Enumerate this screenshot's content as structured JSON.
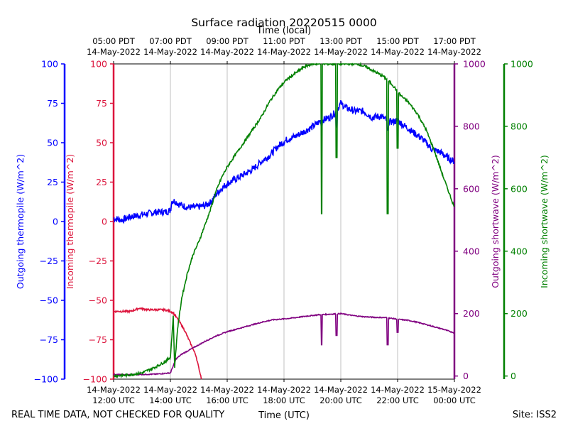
{
  "chart_data": {
    "type": "line",
    "title": "Surface radiation 20220515 0000",
    "top_xlabel": "Time (local)",
    "xlabel": "Time (UTC)",
    "footer_left": "REAL TIME DATA, NOT CHECKED FOR QUALITY",
    "footer_right": "Site: ISS2",
    "xlim_hours_utc": [
      12,
      24
    ],
    "grid": "vertical",
    "x_ticks": [
      {
        "hour": 12,
        "date": "14-May-2022",
        "utc": "12:00 UTC",
        "local_time": "05:00 PDT",
        "local_date": "14-May-2022"
      },
      {
        "hour": 14,
        "date": "14-May-2022",
        "utc": "14:00 UTC",
        "local_time": "07:00 PDT",
        "local_date": "14-May-2022"
      },
      {
        "hour": 16,
        "date": "14-May-2022",
        "utc": "16:00 UTC",
        "local_time": "09:00 PDT",
        "local_date": "14-May-2022"
      },
      {
        "hour": 18,
        "date": "14-May-2022",
        "utc": "18:00 UTC",
        "local_time": "11:00 PDT",
        "local_date": "14-May-2022"
      },
      {
        "hour": 20,
        "date": "14-May-2022",
        "utc": "20:00 UTC",
        "local_time": "13:00 PDT",
        "local_date": "14-May-2022"
      },
      {
        "hour": 22,
        "date": "14-May-2022",
        "utc": "22:00 UTC",
        "local_time": "15:00 PDT",
        "local_date": "14-May-2022"
      },
      {
        "hour": 24,
        "date": "15-May-2022",
        "utc": "00:00 UTC",
        "local_time": "17:00 PDT",
        "local_date": "14-May-2022"
      }
    ],
    "axes": [
      {
        "id": "outgoing_thermopile",
        "label": "Outgoing thermopile (W/m^2)",
        "color": "#0000ff",
        "side": "left-outer",
        "ylim": [
          -100,
          100
        ],
        "ticks": [
          -100,
          -75,
          -50,
          -25,
          0,
          25,
          50,
          75,
          100
        ]
      },
      {
        "id": "incoming_thermopile",
        "label": "Incoming thermopile (W/m^2)",
        "color": "#dc143c",
        "side": "left-inner",
        "ylim": [
          -100,
          100
        ],
        "ticks": [
          -100,
          -75,
          -50,
          -25,
          0,
          25,
          50,
          75,
          100
        ]
      },
      {
        "id": "outgoing_shortwave",
        "label": "Outgoing shortwave (W/m^2)",
        "color": "#800080",
        "side": "right-inner",
        "ylim": [
          -10,
          1000
        ],
        "ticks": [
          0,
          200,
          400,
          600,
          800,
          1000
        ]
      },
      {
        "id": "incoming_shortwave",
        "label": "Incoming shortwave (W/m^2)",
        "color": "#008000",
        "side": "right-outer",
        "ylim": [
          -10,
          1000
        ],
        "ticks": [
          0,
          200,
          400,
          600,
          800,
          1000
        ]
      }
    ],
    "series": [
      {
        "name": "Outgoing thermopile",
        "axis": "outgoing_thermopile",
        "color": "#0000ff",
        "x": [
          12.0,
          12.3,
          12.6,
          12.9,
          13.2,
          13.5,
          13.8,
          14.0,
          14.05,
          14.15,
          14.3,
          14.6,
          14.9,
          15.2,
          15.4,
          15.6,
          15.8,
          16.0,
          16.3,
          16.6,
          16.9,
          17.2,
          17.5,
          17.8,
          18.1,
          18.4,
          18.7,
          19.0,
          19.3,
          19.6,
          19.8,
          20.0,
          20.2,
          20.5,
          20.8,
          21.1,
          21.4,
          21.7,
          22.0,
          22.3,
          22.6,
          22.9,
          23.2,
          23.5,
          23.8,
          24.0
        ],
        "values": [
          2,
          1,
          3,
          4,
          5,
          6,
          6,
          7,
          13,
          13,
          11,
          9,
          9,
          10,
          12,
          17,
          21,
          24,
          27,
          30,
          33,
          38,
          42,
          48,
          52,
          54,
          57,
          60,
          64,
          66,
          69,
          75,
          72,
          70,
          70,
          66,
          67,
          63,
          64,
          60,
          56,
          52,
          46,
          44,
          40,
          38
        ]
      },
      {
        "name": "Incoming thermopile",
        "axis": "incoming_thermopile",
        "color": "#dc143c",
        "x": [
          12.0,
          12.3,
          12.6,
          12.9,
          13.2,
          13.5,
          13.8,
          14.0,
          14.1,
          14.3,
          14.5,
          14.7,
          14.9,
          15.0,
          15.1
        ],
        "values": [
          -57,
          -57,
          -57,
          -55,
          -56,
          -56,
          -56,
          -57,
          -58,
          -63,
          -69,
          -77,
          -85,
          -93,
          -100
        ]
      },
      {
        "name": "Outgoing shortwave",
        "axis": "outgoing_shortwave",
        "color": "#800080",
        "x": [
          12.0,
          12.5,
          13.0,
          13.5,
          14.0,
          14.2,
          14.4,
          14.8,
          15.2,
          15.6,
          16.0,
          16.4,
          16.8,
          17.2,
          17.6,
          18.0,
          18.4,
          18.8,
          19.2,
          19.6,
          20.0,
          20.4,
          20.8,
          21.2,
          21.6,
          22.0,
          22.4,
          22.8,
          23.2,
          23.6,
          24.0
        ],
        "values": [
          5,
          4,
          5,
          6,
          10,
          55,
          70,
          90,
          110,
          128,
          142,
          152,
          162,
          172,
          180,
          183,
          187,
          192,
          196,
          198,
          200,
          194,
          190,
          188,
          187,
          182,
          178,
          170,
          160,
          150,
          138
        ]
      },
      {
        "name": "Incoming shortwave",
        "axis": "incoming_shortwave",
        "color": "#008000",
        "x": [
          12.0,
          12.5,
          13.0,
          13.5,
          13.8,
          14.0,
          14.1,
          14.15,
          14.25,
          14.4,
          14.6,
          14.8,
          15.0,
          15.2,
          15.4,
          15.6,
          15.8,
          16.0,
          16.3,
          16.6,
          16.9,
          17.2,
          17.5,
          17.8,
          18.1,
          18.4,
          18.7,
          19.0,
          19.3,
          19.6,
          19.8,
          20.0,
          20.3,
          20.6,
          20.9,
          21.2,
          21.5,
          21.8,
          22.1,
          22.4,
          22.7,
          23.0,
          23.3,
          23.6,
          24.0
        ],
        "values": [
          0,
          3,
          10,
          30,
          45,
          60,
          190,
          30,
          150,
          250,
          330,
          390,
          430,
          480,
          530,
          590,
          635,
          670,
          710,
          750,
          790,
          830,
          880,
          920,
          950,
          970,
          990,
          1000,
          1000,
          1000,
          1000,
          1000,
          1000,
          1000,
          990,
          975,
          960,
          935,
          900,
          875,
          840,
          790,
          720,
          640,
          540
        ]
      }
    ],
    "annotations": [
      {
        "series": "Incoming shortwave",
        "note": "dips",
        "x": [
          19.33,
          19.85,
          21.65,
          22.0
        ],
        "values": [
          520,
          700,
          520,
          730
        ]
      },
      {
        "series": "Outgoing shortwave",
        "note": "dips",
        "x": [
          19.33,
          19.85,
          21.65,
          22.0
        ],
        "values": [
          100,
          130,
          100,
          140
        ]
      },
      {
        "series": "Outgoing thermopile",
        "note": "dips",
        "x": [
          19.33,
          19.85,
          21.65
        ],
        "values": [
          58,
          60,
          58
        ]
      }
    ]
  }
}
